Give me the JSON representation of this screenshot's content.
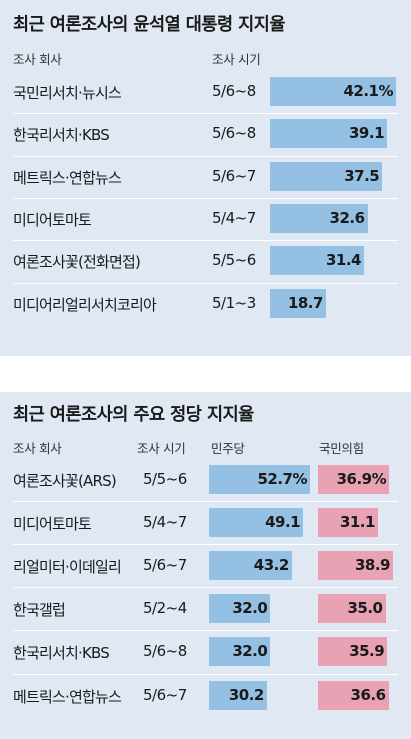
{
  "chart_data": [
    {
      "type": "bar",
      "title": "최근 여론조사의 윤석열 대통령 지지율",
      "column_headers": {
        "company": "조사 회사",
        "date": "조사 시기"
      },
      "categories": [
        "국민리서치·뉴시스",
        "한국리서치·KBS",
        "메트릭스·연합뉴스",
        "미디어토마토",
        "여론조사꽃(전화면접)",
        "미디어리얼리서치코리아"
      ],
      "dates": [
        "5/6~8",
        "5/6~8",
        "5/6~7",
        "5/4~7",
        "5/5~6",
        "5/1~3"
      ],
      "values": [
        42.1,
        39.1,
        37.5,
        32.6,
        31.4,
        18.7
      ],
      "value_labels": [
        "42.1%",
        "39.1",
        "37.5",
        "32.6",
        "31.4",
        "18.7"
      ],
      "xlim": [
        0,
        42.1
      ],
      "colors": {
        "bar": "#94c1e3",
        "background": "#dfe8f3"
      }
    },
    {
      "type": "bar",
      "title": "최근 여론조사의 주요 정당 지지율",
      "column_headers": {
        "company": "조사 회사",
        "date": "조사 시기"
      },
      "categories": [
        "여론조사꽃(ARS)",
        "미디어토마토",
        "리얼미터·이데일리",
        "한국갤럽",
        "한국리서치·KBS",
        "메트릭스·연합뉴스"
      ],
      "dates": [
        "5/5~6",
        "5/4~7",
        "5/6~7",
        "5/2~4",
        "5/6~8",
        "5/6~7"
      ],
      "series": [
        {
          "name": "민주당",
          "values": [
            52.7,
            49.1,
            43.2,
            32.0,
            32.0,
            30.2
          ],
          "value_labels": [
            "52.7%",
            "49.1",
            "43.2",
            "32.0",
            "32.0",
            "30.2"
          ]
        },
        {
          "name": "국민의힘",
          "values": [
            36.9,
            31.1,
            38.9,
            35.0,
            35.9,
            36.6
          ],
          "value_labels": [
            "36.9%",
            "31.1",
            "38.9",
            "35.0",
            "35.9",
            "36.6"
          ]
        }
      ],
      "colors": {
        "민주당": "#94c1e3",
        "국민의힘": "#e9a2b3",
        "background": "#dfe8f3"
      }
    }
  ]
}
